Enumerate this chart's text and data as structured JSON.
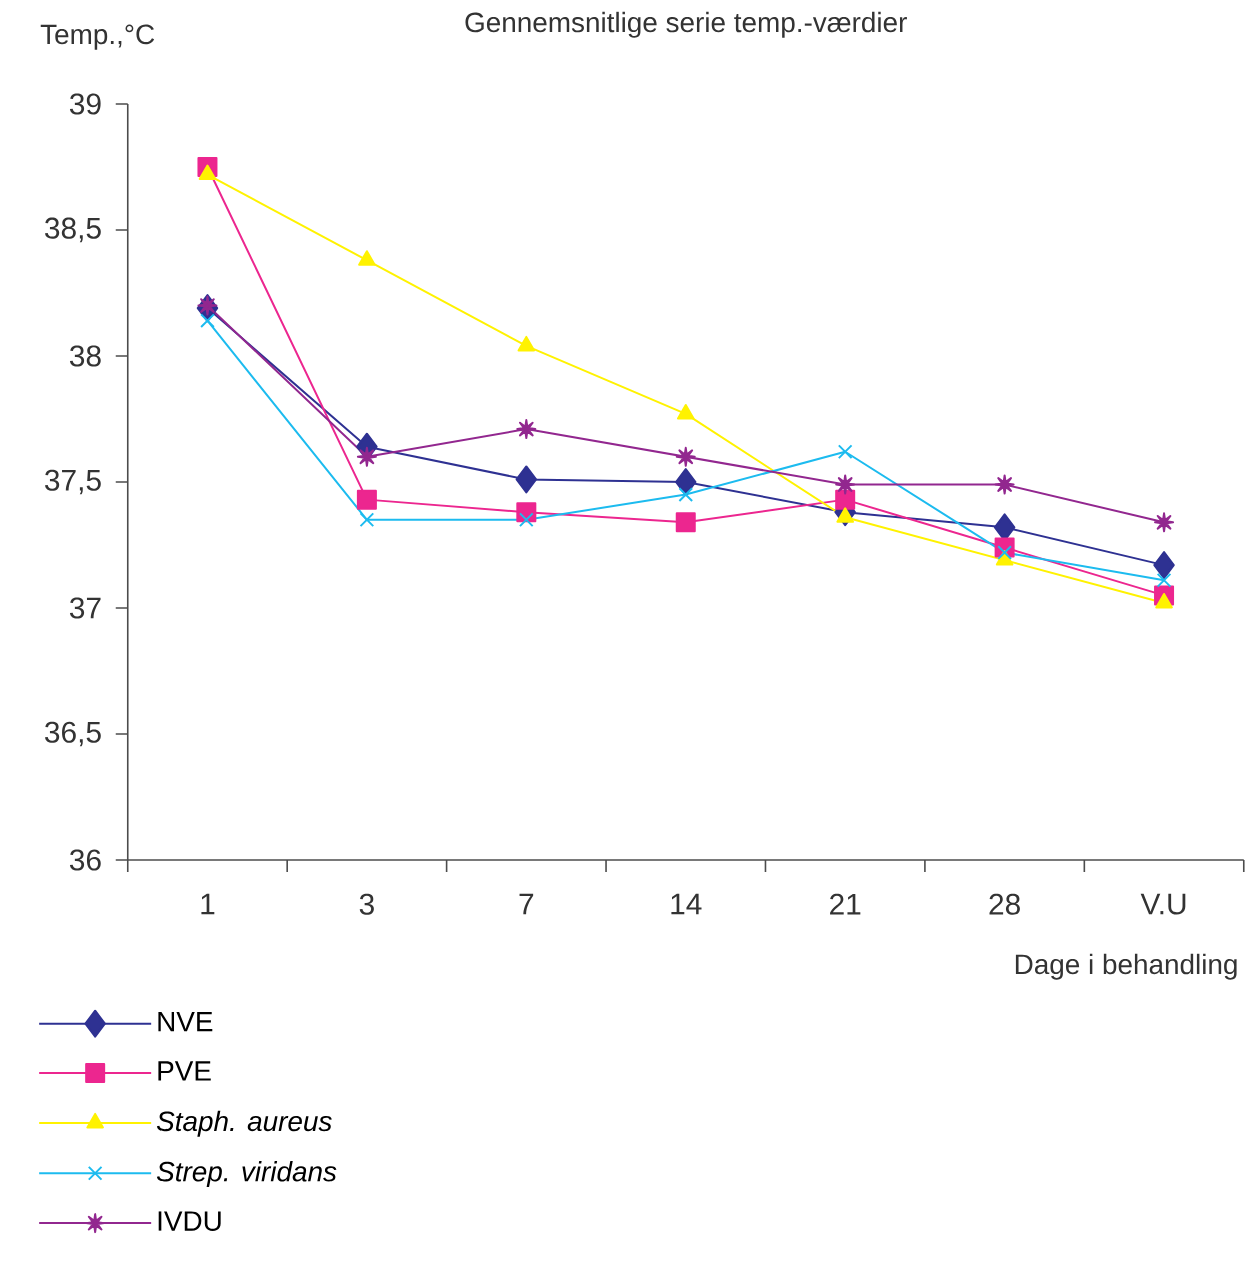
{
  "chart_data": {
    "type": "line",
    "title": "Gennemsnitlige serie temp.-værdier",
    "xlabel": "Dage i behandling",
    "ylabel": "Temp.,°C",
    "categories": [
      "1",
      "3",
      "7",
      "14",
      "21",
      "28",
      "V.U"
    ],
    "ylim": [
      36,
      39
    ],
    "yticks": [
      36,
      {
        "value": 36.5,
        "label": "36,5"
      },
      37,
      {
        "value": 37.5,
        "label": "37,5"
      },
      38,
      {
        "value": 38.5,
        "label": "38,5"
      },
      39
    ],
    "legend": "bottom",
    "line_style": "solid",
    "series": [
      {
        "name": "NVE",
        "color": "#2e3192",
        "marker": "diamond",
        "values": [
          38.19,
          37.64,
          37.51,
          37.5,
          37.38,
          37.32,
          37.17
        ]
      },
      {
        "name": "PVE",
        "color": "#ec268f",
        "marker": "square",
        "values": [
          38.75,
          37.43,
          37.38,
          37.34,
          37.43,
          37.24,
          37.05
        ]
      },
      {
        "name": "*Staph. aureus*",
        "color": "#fff200",
        "marker": "triangle",
        "values": [
          38.72,
          38.38,
          38.04,
          37.77,
          37.36,
          37.19,
          37.02
        ]
      },
      {
        "name": "*Strep. viridans*",
        "color": "#1cbbef",
        "marker": "cross",
        "values": [
          38.14,
          37.35,
          37.35,
          37.45,
          37.62,
          37.22,
          37.11
        ]
      },
      {
        "name": "IVDU",
        "color": "#92278f",
        "marker": "star",
        "values": [
          38.2,
          37.6,
          37.71,
          37.6,
          37.49,
          37.49,
          37.34
        ]
      }
    ]
  }
}
